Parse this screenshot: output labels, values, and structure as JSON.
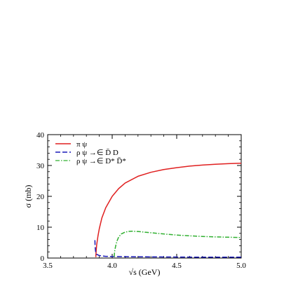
{
  "chart_data": {
    "type": "line",
    "xlabel": "√s (GeV)",
    "ylabel": "σ (mb)",
    "xlim": [
      3.5,
      5.0
    ],
    "ylim": [
      0,
      40
    ],
    "xticks": [
      3.5,
      4.0,
      4.5,
      5.0
    ],
    "xtick_labels": [
      "3.5",
      "4.0",
      "4.5",
      "5.0"
    ],
    "yticks": [
      0,
      10,
      20,
      30,
      40
    ],
    "ytick_labels": [
      "0",
      "10",
      "20",
      "30",
      "40"
    ],
    "grid": false,
    "legend_position": "top-left",
    "series": [
      {
        "name": "π ψ",
        "color": "#e02020",
        "dash": "solid",
        "points": [
          [
            3.873,
            0.3
          ],
          [
            3.876,
            2.5
          ],
          [
            3.88,
            4.3
          ],
          [
            3.89,
            7.2
          ],
          [
            3.9,
            9.5
          ],
          [
            3.92,
            13.0
          ],
          [
            3.95,
            16.3
          ],
          [
            4.0,
            20.0
          ],
          [
            4.05,
            22.5
          ],
          [
            4.1,
            24.3
          ],
          [
            4.2,
            26.5
          ],
          [
            4.3,
            27.8
          ],
          [
            4.4,
            28.7
          ],
          [
            4.5,
            29.3
          ],
          [
            4.6,
            29.8
          ],
          [
            4.7,
            30.15
          ],
          [
            4.8,
            30.4
          ],
          [
            4.9,
            30.6
          ],
          [
            5.0,
            30.75
          ]
        ]
      },
      {
        "name": "ρ ψ →∈ D̄ D",
        "color": "#1a1ab8",
        "dash": "long-dash",
        "points": [
          [
            3.866,
            5.8
          ],
          [
            3.867,
            4.5
          ],
          [
            3.869,
            3.0
          ],
          [
            3.872,
            2.0
          ],
          [
            3.88,
            1.2
          ],
          [
            3.9,
            0.8
          ],
          [
            3.95,
            0.55
          ],
          [
            4.0,
            0.5
          ],
          [
            4.2,
            0.4
          ],
          [
            4.4,
            0.35
          ],
          [
            4.6,
            0.3
          ],
          [
            4.8,
            0.28
          ],
          [
            5.0,
            0.27
          ]
        ]
      },
      {
        "name": "ρ ψ →∈ D* D̄*",
        "color": "#30b030",
        "dash": "dash-dot",
        "points": [
          [
            4.015,
            0.4
          ],
          [
            4.02,
            2.5
          ],
          [
            4.03,
            4.5
          ],
          [
            4.04,
            5.8
          ],
          [
            4.05,
            6.8
          ],
          [
            4.07,
            7.8
          ],
          [
            4.1,
            8.4
          ],
          [
            4.13,
            8.65
          ],
          [
            4.15,
            8.7
          ],
          [
            4.2,
            8.6
          ],
          [
            4.3,
            8.2
          ],
          [
            4.4,
            7.8
          ],
          [
            4.5,
            7.45
          ],
          [
            4.6,
            7.2
          ],
          [
            4.7,
            7.0
          ],
          [
            4.8,
            6.85
          ],
          [
            4.9,
            6.75
          ],
          [
            5.0,
            6.65
          ]
        ]
      }
    ]
  }
}
